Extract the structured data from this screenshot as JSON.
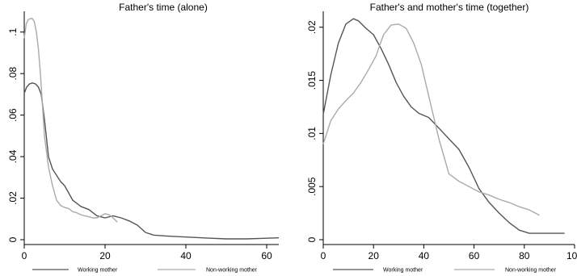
{
  "chart_data": [
    {
      "type": "line",
      "title": "Father's time (alone)",
      "xlim": [
        0,
        63
      ],
      "ylim": [
        0,
        0.11
      ],
      "xticks": [
        {
          "value": 0,
          "label": "0"
        },
        {
          "value": 20,
          "label": "20"
        },
        {
          "value": 40,
          "label": "40"
        },
        {
          "value": 60,
          "label": "60"
        }
      ],
      "yticks": [
        {
          "value": 0,
          "label": "0"
        },
        {
          "value": 0.02,
          "label": ".02"
        },
        {
          "value": 0.04,
          "label": ".04"
        },
        {
          "value": 0.06,
          "label": ".06"
        },
        {
          "value": 0.08,
          "label": ".08"
        },
        {
          "value": 0.1,
          "label": ".1"
        }
      ],
      "series": [
        {
          "name": "Working mother",
          "color": "#555555",
          "x": [
            0,
            0.6,
            1.3,
            2,
            2.8,
            3.5,
            4.2,
            5,
            6,
            7,
            8,
            9,
            10,
            12,
            14,
            16,
            18,
            20,
            22,
            24,
            26,
            28,
            30,
            32,
            35,
            40,
            45,
            50,
            55,
            60,
            63
          ],
          "y": [
            0.0705,
            0.0735,
            0.075,
            0.0755,
            0.075,
            0.0735,
            0.07,
            0.058,
            0.04,
            0.034,
            0.031,
            0.028,
            0.026,
            0.019,
            0.016,
            0.0145,
            0.0115,
            0.0105,
            0.0115,
            0.0105,
            0.009,
            0.007,
            0.0035,
            0.0022,
            0.0018,
            0.0013,
            0.0008,
            0.0004,
            0.0004,
            0.0007,
            0.0009
          ]
        },
        {
          "name": "Non-working mother",
          "color": "#aaaaaa",
          "x": [
            0,
            0.5,
            1,
            1.5,
            2,
            2.5,
            3,
            3.5,
            4,
            4.5,
            5,
            6,
            7,
            8,
            9,
            10,
            11,
            12,
            13,
            14,
            15,
            16,
            17,
            18,
            19,
            20,
            21,
            22,
            23
          ],
          "y": [
            0.097,
            0.104,
            0.106,
            0.1065,
            0.1065,
            0.105,
            0.1,
            0.092,
            0.08,
            0.065,
            0.05,
            0.035,
            0.026,
            0.019,
            0.0165,
            0.0155,
            0.015,
            0.0135,
            0.013,
            0.012,
            0.0115,
            0.011,
            0.0105,
            0.0105,
            0.0115,
            0.0125,
            0.012,
            0.0105,
            0.0085
          ]
        }
      ]
    },
    {
      "type": "line",
      "title": "Father's and mother's time (together)",
      "xlim": [
        0,
        100
      ],
      "ylim": [
        0,
        0.0215
      ],
      "xticks": [
        {
          "value": 0,
          "label": "0"
        },
        {
          "value": 20,
          "label": "20"
        },
        {
          "value": 40,
          "label": "40"
        },
        {
          "value": 60,
          "label": "60"
        },
        {
          "value": 80,
          "label": "80"
        },
        {
          "value": 100,
          "label": "100"
        }
      ],
      "yticks": [
        {
          "value": 0,
          "label": "0"
        },
        {
          "value": 0.005,
          "label": ".005"
        },
        {
          "value": 0.01,
          "label": ".01"
        },
        {
          "value": 0.015,
          "label": ".015"
        },
        {
          "value": 0.02,
          "label": ".02"
        }
      ],
      "series": [
        {
          "name": "Working mother",
          "color": "#555555",
          "x": [
            0,
            3,
            6,
            9,
            12,
            14,
            17,
            20,
            23,
            26,
            29,
            32,
            35,
            38,
            42,
            46,
            50,
            54,
            58,
            62,
            66,
            70,
            74,
            78,
            82,
            86,
            90,
            96
          ],
          "y": [
            0.0118,
            0.0155,
            0.0185,
            0.0203,
            0.0208,
            0.0206,
            0.0199,
            0.0193,
            0.018,
            0.0165,
            0.0148,
            0.0135,
            0.0125,
            0.0119,
            0.0115,
            0.0105,
            0.0095,
            0.0085,
            0.0068,
            0.0048,
            0.0035,
            0.0025,
            0.0016,
            0.0009,
            0.0006,
            0.0006,
            0.0006,
            0.0006
          ]
        },
        {
          "name": "Non-working mother",
          "color": "#aaaaaa",
          "x": [
            0,
            3,
            6,
            9,
            12,
            15,
            18,
            21,
            24,
            27,
            30,
            33,
            36,
            39,
            42,
            46,
            50,
            54,
            58,
            62,
            66,
            70,
            74,
            78,
            82,
            86
          ],
          "y": [
            0.009,
            0.0112,
            0.0123,
            0.0131,
            0.0138,
            0.0148,
            0.016,
            0.0173,
            0.0193,
            0.0202,
            0.0203,
            0.0199,
            0.0185,
            0.0165,
            0.0135,
            0.0095,
            0.0062,
            0.0055,
            0.005,
            0.0045,
            0.0042,
            0.0038,
            0.0035,
            0.0031,
            0.0028,
            0.0023
          ]
        }
      ]
    }
  ]
}
